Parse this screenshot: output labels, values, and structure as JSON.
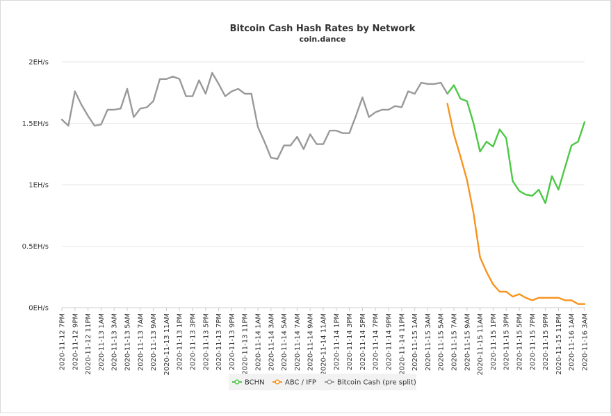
{
  "chart_data": {
    "type": "line",
    "title": "Bitcoin Cash Hash Rates by Network",
    "subtitle": "coin.dance",
    "ylim": [
      0,
      2
    ],
    "y_ticks": [
      {
        "value": 0,
        "label": "0EH/s"
      },
      {
        "value": 0.5,
        "label": "0.5EH/s"
      },
      {
        "value": 1,
        "label": "1EH/s"
      },
      {
        "value": 1.5,
        "label": "1.5EH/s"
      },
      {
        "value": 2,
        "label": "2EH/s"
      }
    ],
    "x_tick_labels": [
      "2020-11-12 7PM",
      "2020-11-12 9PM",
      "2020-11-12 11PM",
      "2020-11-13 1AM",
      "2020-11-13 3AM",
      "2020-11-13 5AM",
      "2020-11-13 7AM",
      "2020-11-13 9AM",
      "2020-11-13 11AM",
      "2020-11-13 1PM",
      "2020-11-13 3PM",
      "2020-11-13 5PM",
      "2020-11-13 7PM",
      "2020-11-13 9PM",
      "2020-11-13 11PM",
      "2020-11-14 1AM",
      "2020-11-14 3AM",
      "2020-11-14 5AM",
      "2020-11-14 7AM",
      "2020-11-14 9AM",
      "2020-11-14 11AM",
      "2020-11-14 1PM",
      "2020-11-14 3PM",
      "2020-11-14 5PM",
      "2020-11-14 7PM",
      "2020-11-14 9PM",
      "2020-11-14 11PM",
      "2020-11-15 1AM",
      "2020-11-15 3AM",
      "2020-11-15 5AM",
      "2020-11-15 7AM",
      "2020-11-15 9AM",
      "2020-11-15 11AM",
      "2020-11-15 1PM",
      "2020-11-15 3PM",
      "2020-11-15 5PM",
      "2020-11-15 7PM",
      "2020-11-15 9PM",
      "2020-11-15 11PM",
      "2020-11-16 1AM",
      "2020-11-16 3AM"
    ],
    "x": [
      "2020-11-12 7PM",
      "2020-11-12 8PM",
      "2020-11-12 9PM",
      "2020-11-12 10PM",
      "2020-11-12 11PM",
      "2020-11-13 12AM",
      "2020-11-13 1AM",
      "2020-11-13 2AM",
      "2020-11-13 3AM",
      "2020-11-13 4AM",
      "2020-11-13 5AM",
      "2020-11-13 6AM",
      "2020-11-13 7AM",
      "2020-11-13 8AM",
      "2020-11-13 9AM",
      "2020-11-13 10AM",
      "2020-11-13 11AM",
      "2020-11-13 12PM",
      "2020-11-13 1PM",
      "2020-11-13 2PM",
      "2020-11-13 3PM",
      "2020-11-13 4PM",
      "2020-11-13 5PM",
      "2020-11-13 6PM",
      "2020-11-13 7PM",
      "2020-11-13 8PM",
      "2020-11-13 9PM",
      "2020-11-13 10PM",
      "2020-11-13 11PM",
      "2020-11-14 12AM",
      "2020-11-14 1AM",
      "2020-11-14 2AM",
      "2020-11-14 3AM",
      "2020-11-14 4AM",
      "2020-11-14 5AM",
      "2020-11-14 6AM",
      "2020-11-14 7AM",
      "2020-11-14 8AM",
      "2020-11-14 9AM",
      "2020-11-14 10AM",
      "2020-11-14 11AM",
      "2020-11-14 12PM",
      "2020-11-14 1PM",
      "2020-11-14 2PM",
      "2020-11-14 3PM",
      "2020-11-14 4PM",
      "2020-11-14 5PM",
      "2020-11-14 6PM",
      "2020-11-14 7PM",
      "2020-11-14 8PM",
      "2020-11-14 9PM",
      "2020-11-14 10PM",
      "2020-11-14 11PM",
      "2020-11-15 12AM",
      "2020-11-15 1AM",
      "2020-11-15 2AM",
      "2020-11-15 3AM",
      "2020-11-15 4AM",
      "2020-11-15 5AM",
      "2020-11-15 6AM",
      "2020-11-15 7AM",
      "2020-11-15 8AM",
      "2020-11-15 9AM",
      "2020-11-15 10AM",
      "2020-11-15 11AM",
      "2020-11-15 12PM",
      "2020-11-15 1PM",
      "2020-11-15 2PM",
      "2020-11-15 3PM",
      "2020-11-15 4PM",
      "2020-11-15 5PM",
      "2020-11-15 6PM",
      "2020-11-15 7PM",
      "2020-11-15 8PM",
      "2020-11-15 9PM",
      "2020-11-15 10PM",
      "2020-11-15 11PM",
      "2020-11-16 12AM",
      "2020-11-16 1AM",
      "2020-11-16 2AM",
      "2020-11-16 3AM"
    ],
    "series": [
      {
        "name": "BCHN",
        "color": "#4cc845",
        "values": [
          null,
          null,
          null,
          null,
          null,
          null,
          null,
          null,
          null,
          null,
          null,
          null,
          null,
          null,
          null,
          null,
          null,
          null,
          null,
          null,
          null,
          null,
          null,
          null,
          null,
          null,
          null,
          null,
          null,
          null,
          null,
          null,
          null,
          null,
          null,
          null,
          null,
          null,
          null,
          null,
          null,
          null,
          null,
          null,
          null,
          null,
          null,
          null,
          null,
          null,
          null,
          null,
          null,
          null,
          null,
          null,
          null,
          null,
          null,
          1.74,
          1.81,
          1.7,
          1.68,
          1.5,
          1.27,
          1.35,
          1.31,
          1.45,
          1.38,
          1.03,
          0.95,
          0.92,
          0.91,
          0.96,
          0.85,
          1.07,
          0.96,
          1.14,
          1.32,
          1.35,
          1.51
        ]
      },
      {
        "name": "ABC / IFP",
        "color": "#f7941d",
        "values": [
          null,
          null,
          null,
          null,
          null,
          null,
          null,
          null,
          null,
          null,
          null,
          null,
          null,
          null,
          null,
          null,
          null,
          null,
          null,
          null,
          null,
          null,
          null,
          null,
          null,
          null,
          null,
          null,
          null,
          null,
          null,
          null,
          null,
          null,
          null,
          null,
          null,
          null,
          null,
          null,
          null,
          null,
          null,
          null,
          null,
          null,
          null,
          null,
          null,
          null,
          null,
          null,
          null,
          null,
          null,
          null,
          null,
          null,
          null,
          1.66,
          1.41,
          1.23,
          1.04,
          0.77,
          0.41,
          0.29,
          0.19,
          0.13,
          0.13,
          0.09,
          0.11,
          0.08,
          0.06,
          0.08,
          0.08,
          0.08,
          0.08,
          0.06,
          0.06,
          0.03,
          0.03
        ]
      },
      {
        "name": "Bitcoin Cash (pre split)",
        "color": "#999999",
        "values": [
          1.53,
          1.48,
          1.76,
          1.65,
          1.56,
          1.48,
          1.49,
          1.61,
          1.61,
          1.62,
          1.78,
          1.55,
          1.62,
          1.63,
          1.68,
          1.86,
          1.86,
          1.88,
          1.86,
          1.72,
          1.72,
          1.85,
          1.74,
          1.91,
          1.82,
          1.72,
          1.76,
          1.78,
          1.74,
          1.74,
          1.47,
          1.35,
          1.22,
          1.21,
          1.32,
          1.32,
          1.39,
          1.29,
          1.41,
          1.33,
          1.33,
          1.44,
          1.44,
          1.42,
          1.42,
          1.56,
          1.71,
          1.55,
          1.59,
          1.61,
          1.61,
          1.64,
          1.63,
          1.76,
          1.74,
          1.83,
          1.82,
          1.82,
          1.83,
          1.74,
          null,
          null,
          null,
          null,
          null,
          null,
          null,
          null,
          null,
          null,
          null,
          null,
          null,
          null,
          null,
          null,
          null,
          null,
          null,
          null,
          null
        ]
      }
    ],
    "grid": true,
    "legend": "bottom-center"
  }
}
